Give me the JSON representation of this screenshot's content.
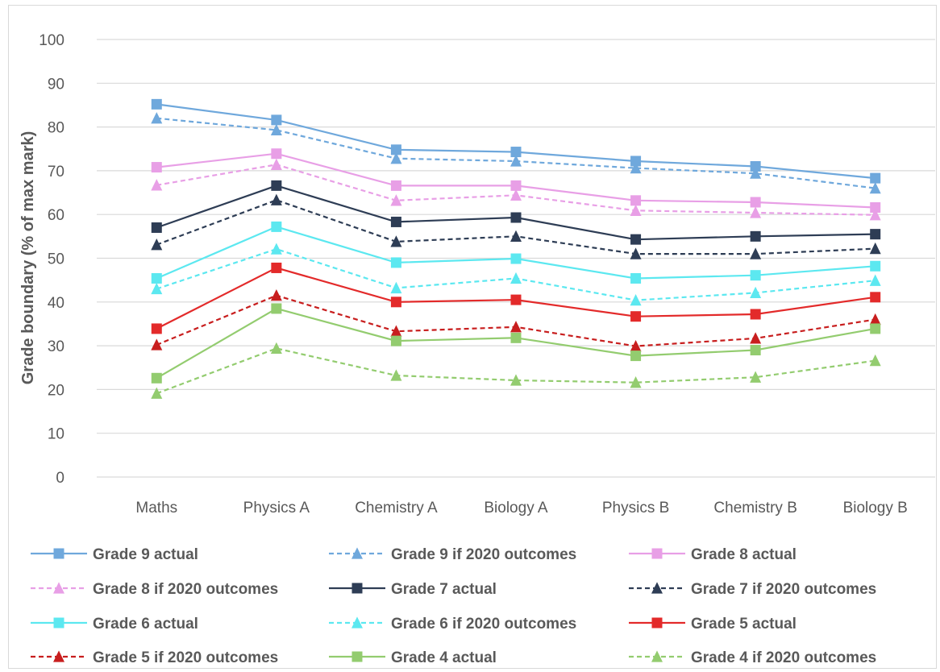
{
  "chart_data": {
    "type": "line",
    "title": "",
    "xlabel": "",
    "ylabel": "Grade boundary (% of max mark)",
    "ylim": [
      0,
      100
    ],
    "yticks": [
      0,
      10,
      20,
      30,
      40,
      50,
      60,
      70,
      80,
      90,
      100
    ],
    "grid": "horizontal",
    "legend_position": "bottom",
    "categories": [
      "Maths",
      "Physics A",
      "Chemistry A",
      "Biology A",
      "Physics B",
      "Chemistry B",
      "Biology B"
    ],
    "series": [
      {
        "name": "Grade 9 actual",
        "color": "#6fa8dc",
        "dash": "solid",
        "marker": "square",
        "values": [
          85.2,
          81.6,
          74.8,
          74.3,
          72.2,
          71.0,
          68.3
        ]
      },
      {
        "name": "Grade 9 if 2020 outcomes",
        "color": "#6fa8dc",
        "dash": "dashed",
        "marker": "triangle",
        "values": [
          82.0,
          79.3,
          72.8,
          72.2,
          70.6,
          69.4,
          66.0
        ]
      },
      {
        "name": "Grade 8 actual",
        "color": "#e89fe6",
        "dash": "solid",
        "marker": "square",
        "values": [
          70.8,
          73.9,
          66.6,
          66.6,
          63.2,
          62.8,
          61.6
        ]
      },
      {
        "name": "Grade 8 if 2020 outcomes",
        "color": "#e89fe6",
        "dash": "dashed",
        "marker": "triangle",
        "values": [
          66.7,
          71.4,
          63.2,
          64.4,
          60.9,
          60.4,
          59.9
        ]
      },
      {
        "name": "Grade 7 actual",
        "color": "#2e3d55",
        "dash": "solid",
        "marker": "square",
        "values": [
          57.0,
          66.6,
          58.3,
          59.3,
          54.3,
          55.0,
          55.5
        ]
      },
      {
        "name": "Grade 7 if 2020 outcomes",
        "color": "#2e3d55",
        "dash": "dashed",
        "marker": "triangle",
        "values": [
          53.1,
          63.3,
          53.8,
          55.0,
          51.0,
          51.0,
          52.2
        ]
      },
      {
        "name": "Grade 6 actual",
        "color": "#5ce8f0",
        "dash": "solid",
        "marker": "square",
        "values": [
          45.4,
          57.2,
          49.0,
          49.9,
          45.4,
          46.1,
          48.2
        ]
      },
      {
        "name": "Grade 6 if 2020 outcomes",
        "color": "#5ce8f0",
        "dash": "dashed",
        "marker": "triangle",
        "values": [
          43.0,
          52.1,
          43.2,
          45.4,
          40.4,
          42.1,
          44.9
        ]
      },
      {
        "name": "Grade 5 actual",
        "color": "#e32a2a",
        "dash": "solid",
        "marker": "square",
        "values": [
          33.9,
          47.8,
          40.0,
          40.5,
          36.7,
          37.2,
          41.1
        ]
      },
      {
        "name": "Grade 5 if 2020 outcomes",
        "color": "#c81e1e",
        "dash": "dashed",
        "marker": "triangle",
        "values": [
          30.2,
          41.5,
          33.3,
          34.3,
          29.9,
          31.7,
          36.0
        ]
      },
      {
        "name": "Grade 4 actual",
        "color": "#93cc6f",
        "dash": "solid",
        "marker": "square",
        "values": [
          22.6,
          38.5,
          31.1,
          31.8,
          27.7,
          29.0,
          33.9
        ]
      },
      {
        "name": "Grade 4 if 2020 outcomes",
        "color": "#93cc6f",
        "dash": "dashed",
        "marker": "triangle",
        "values": [
          19.1,
          29.4,
          23.2,
          22.1,
          21.6,
          22.8,
          26.6
        ]
      }
    ]
  }
}
